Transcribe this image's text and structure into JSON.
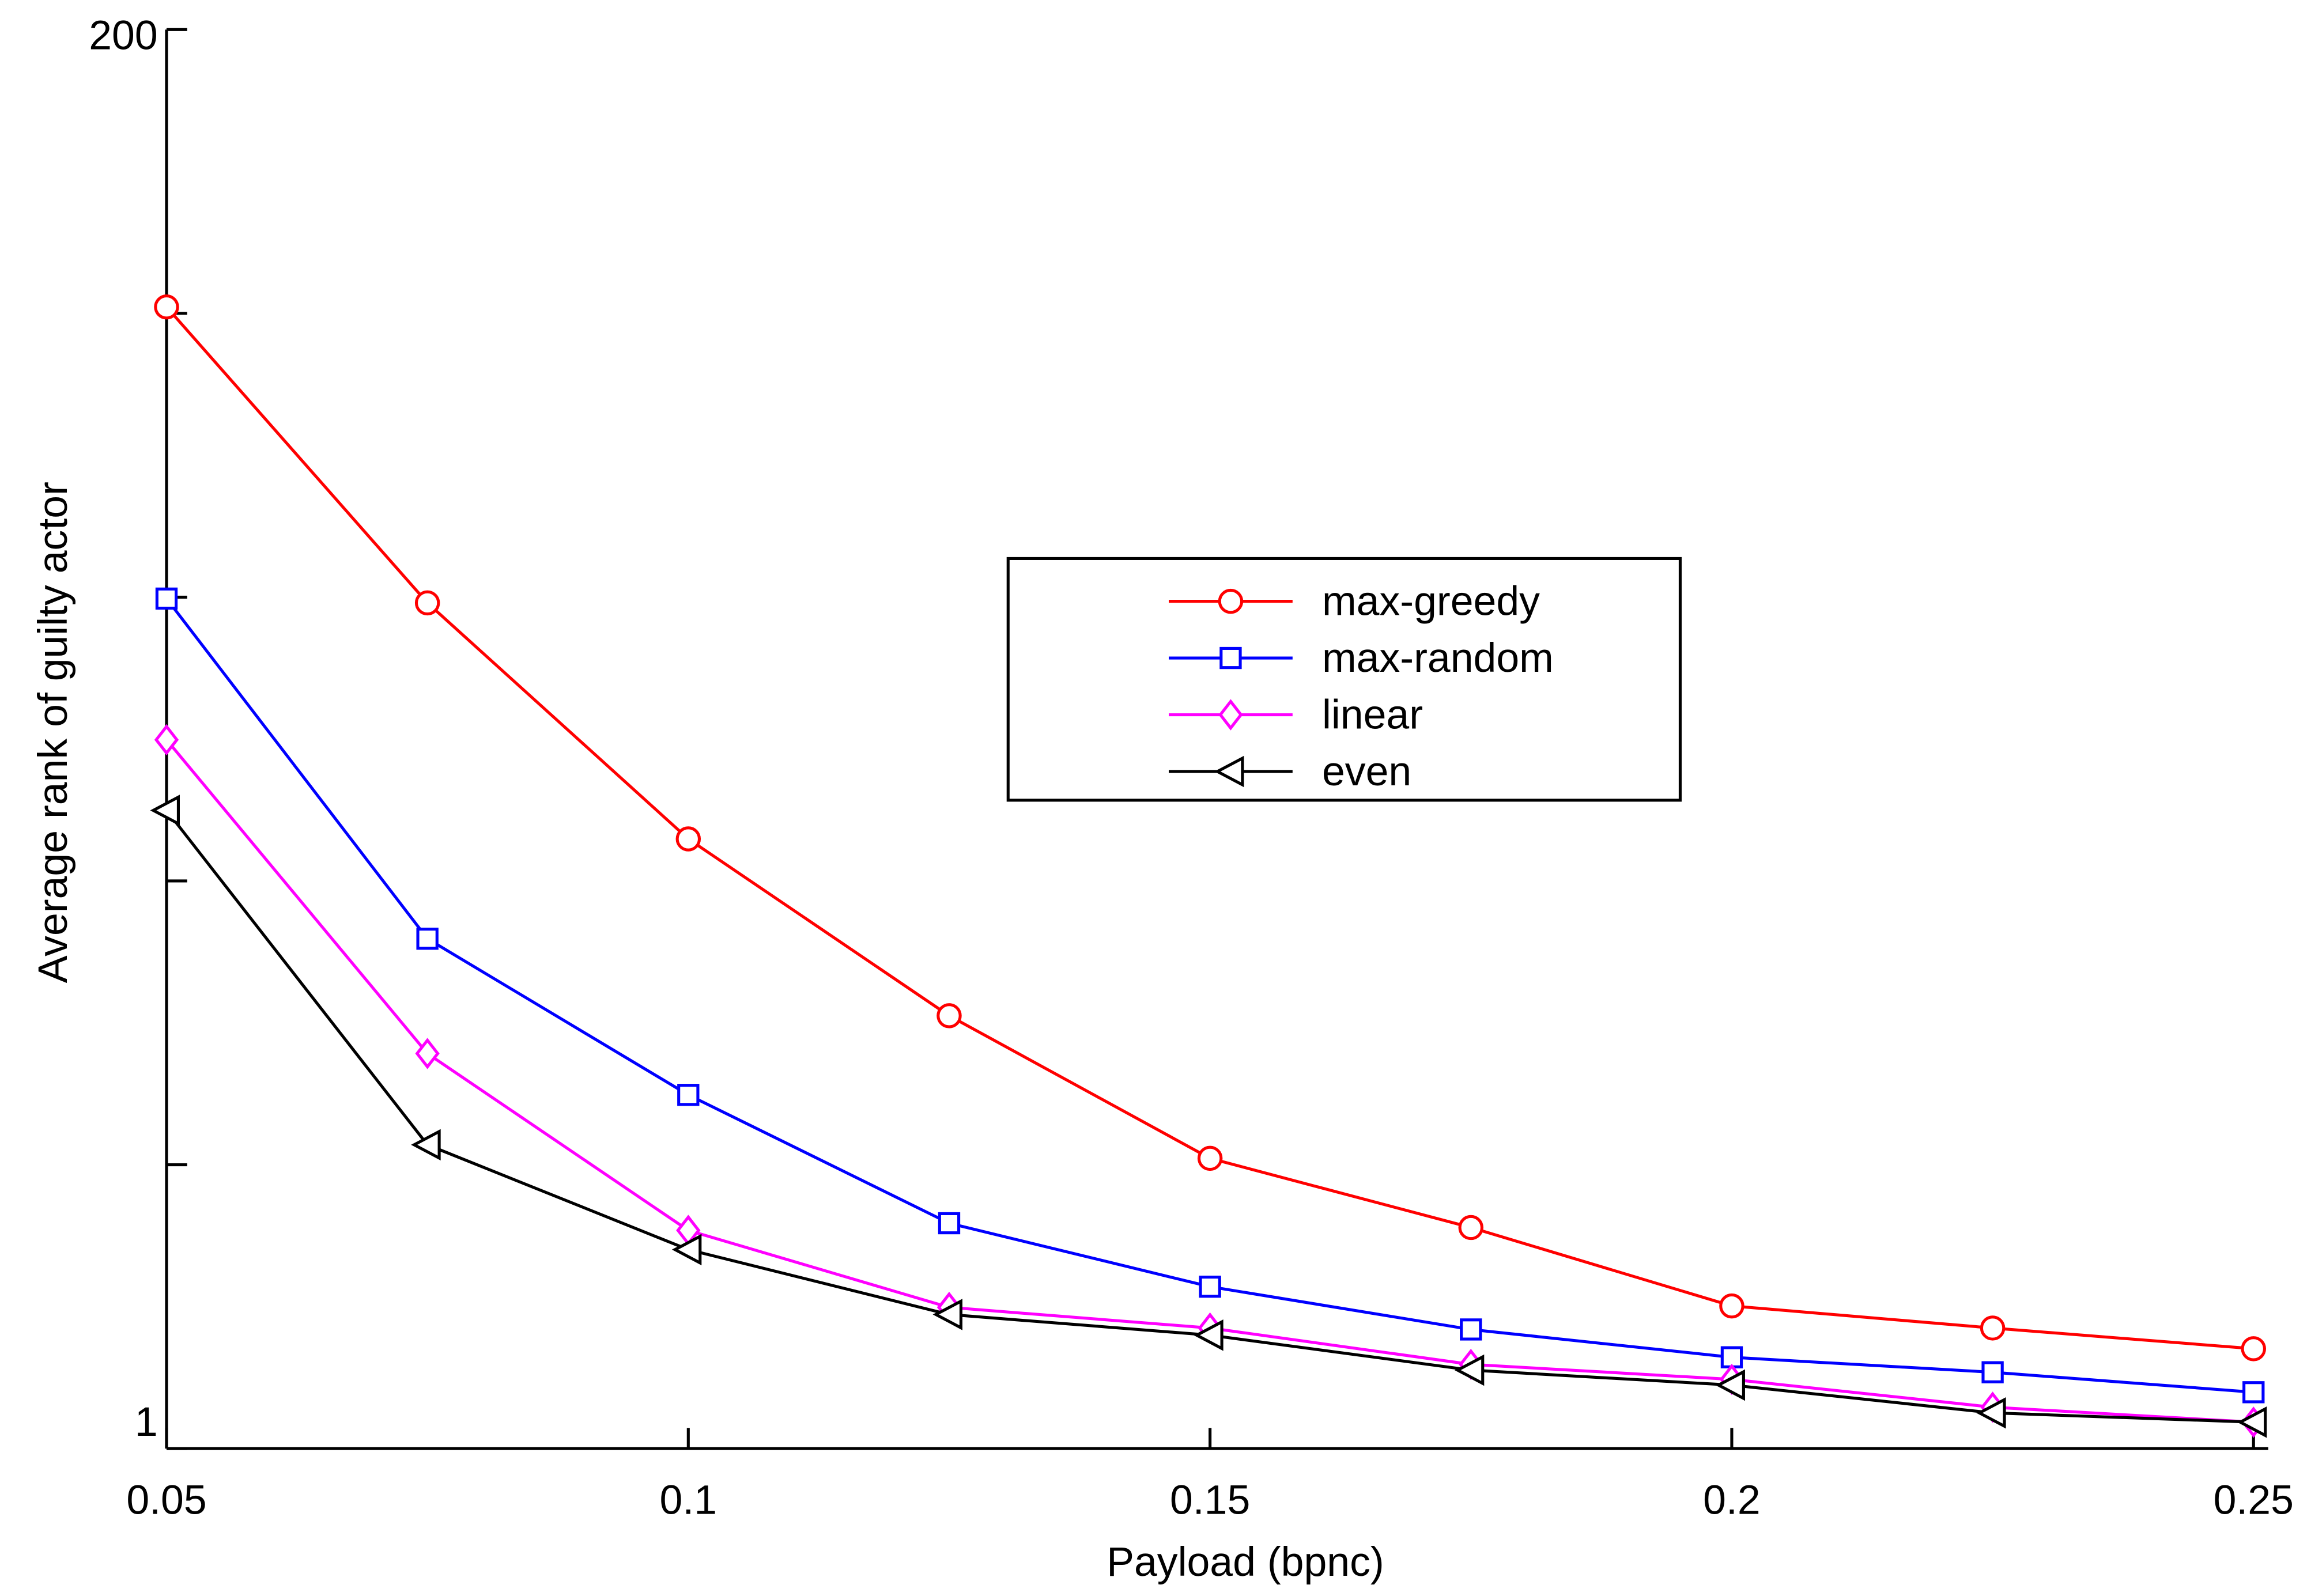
{
  "chart_data": {
    "type": "line",
    "xlabel": "Payload (bpnc)",
    "ylabel": "Average rank of guilty actor",
    "x": [
      0.05,
      0.075,
      0.1,
      0.125,
      0.15,
      0.175,
      0.2,
      0.225,
      0.25
    ],
    "series": [
      {
        "name": "max-greedy",
        "color": "#ff0000",
        "marker": "circle",
        "values": [
          161.1,
          119.6,
          86.5,
          61.7,
          41.7,
          32.0,
          21.0,
          17.9,
          15.0
        ]
      },
      {
        "name": "max-random",
        "color": "#0000ff",
        "marker": "square",
        "values": [
          120.2,
          72.5,
          50.6,
          32.6,
          23.7,
          17.7,
          13.8,
          11.7,
          8.9
        ]
      },
      {
        "name": "linear",
        "color": "#ff00ff",
        "marker": "diamond",
        "values": [
          100.4,
          56.4,
          31.6,
          20.8,
          17.9,
          12.8,
          10.7,
          6.8,
          4.7
        ]
      },
      {
        "name": "even",
        "color": "#000000",
        "marker": "triangle-left",
        "values": [
          90.5,
          43.6,
          28.9,
          19.8,
          16.9,
          12.0,
          9.9,
          6.0,
          4.7
        ]
      }
    ],
    "xlim": [
      0.05,
      0.25
    ],
    "xticks": [
      0.05,
      0.1,
      0.15,
      0.2,
      0.25
    ],
    "ylim": [
      1,
      200
    ],
    "yticks": [
      1,
      200
    ],
    "minor_yticks": [
      40.8,
      80.6,
      120.4,
      160.2
    ],
    "grid": false,
    "legend": "center-right"
  }
}
